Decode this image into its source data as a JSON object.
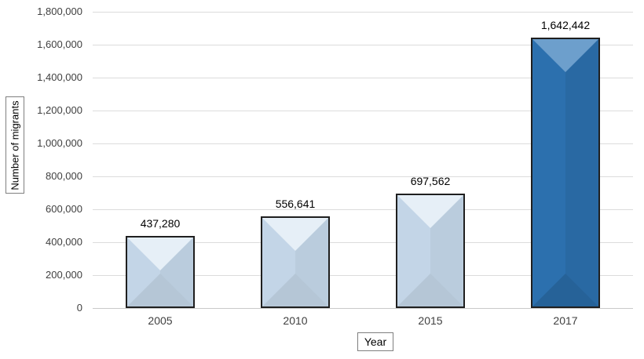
{
  "chart_data": {
    "type": "bar",
    "title": "",
    "xlabel": "Year",
    "ylabel": "Number of migrants",
    "categories": [
      "2005",
      "2010",
      "2015",
      "2017"
    ],
    "values": [
      437280,
      556641,
      697562,
      1642442
    ],
    "value_labels": [
      "437,280",
      "556,641",
      "697,562",
      "1,642,442"
    ],
    "ylim": [
      0,
      1800000
    ],
    "ytick_interval": 200000,
    "ytick_labels": [
      "0",
      "200,000",
      "400,000",
      "600,000",
      "800,000",
      "1,000,000",
      "1,200,000",
      "1,400,000",
      "1,600,000",
      "1,800,000"
    ],
    "grid": "horizontal",
    "legend": "none",
    "bar_colors": [
      "#c9dcee",
      "#c9dcee",
      "#c9dcee",
      "#2e75b6"
    ],
    "bar_border_color": "#1f1f1f",
    "gridline_color": "#dcdcdc",
    "axis_line_color": "#c9c9c9",
    "tick_text_color": "#404040",
    "label_text_color": "#000000"
  }
}
